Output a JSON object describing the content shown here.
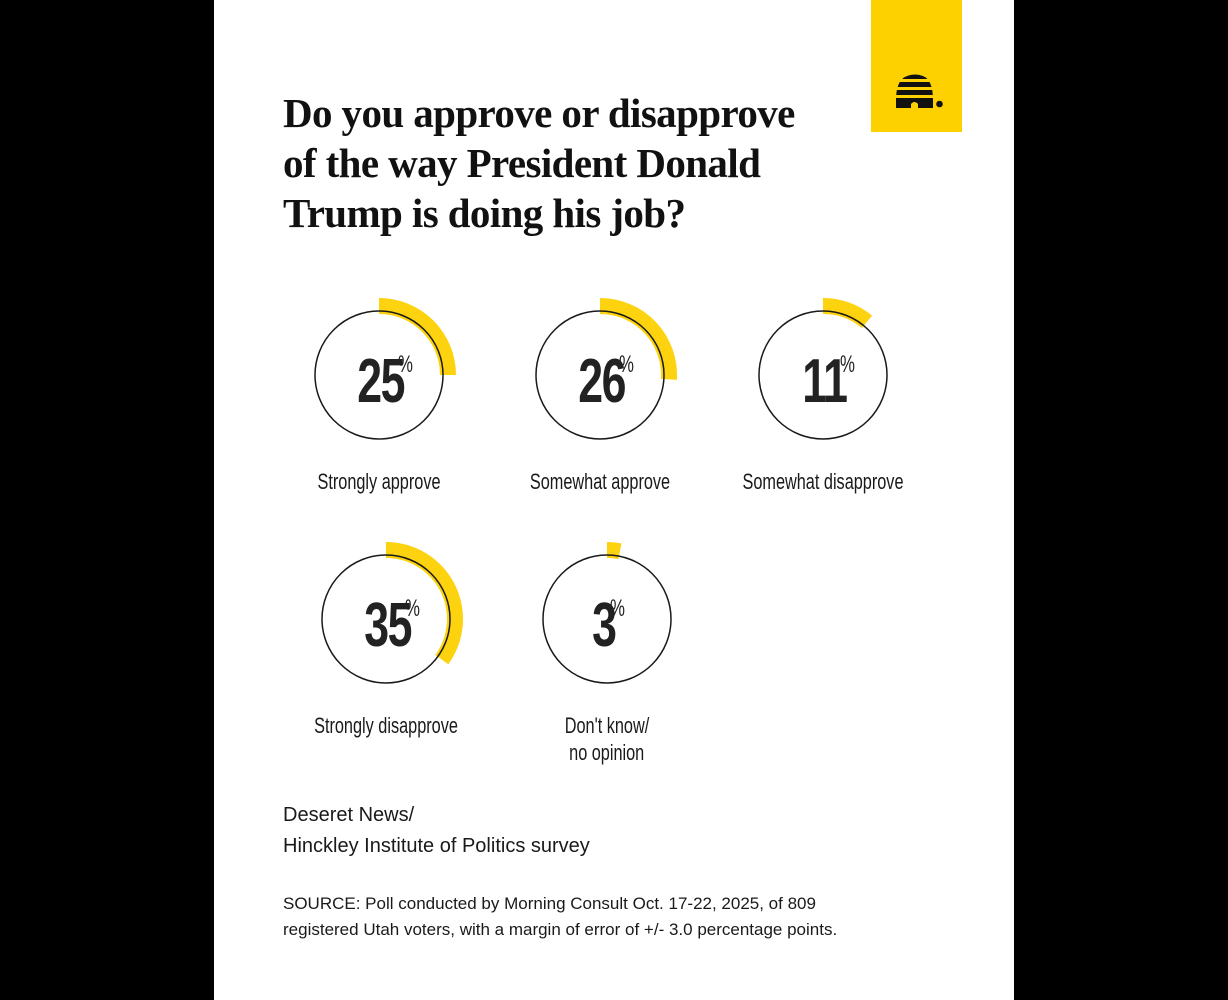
{
  "title_lines": [
    "Do you approve or disapprove",
    "of the way President Donald",
    "Trump is doing his job?"
  ],
  "logo": {
    "icon": "beehive-icon",
    "background": "#FDD000"
  },
  "colors": {
    "accent": "#FDD20E",
    "ring": "#1a1a1a",
    "text": "#1a1a1a",
    "page": "#ffffff",
    "frame": "#000000"
  },
  "items": [
    {
      "value": "25",
      "pct": "%",
      "label_lines": [
        "Strongly approve"
      ]
    },
    {
      "value": "26",
      "pct": "%",
      "label_lines": [
        "Somewhat approve"
      ]
    },
    {
      "value": "11",
      "pct": "%",
      "label_lines": [
        "Somewhat disapprove"
      ]
    },
    {
      "value": "35",
      "pct": "%",
      "label_lines": [
        "Strongly disapprove"
      ]
    },
    {
      "value": "3",
      "pct": "%",
      "label_lines": [
        "Don't know/",
        "no opinion"
      ]
    }
  ],
  "credit_lines": [
    "Deseret News/",
    "Hinckley Institute of Politics survey"
  ],
  "source_lines": [
    "SOURCE: Poll conducted by Morning Consult Oct. 17-22, 2025, of 809",
    "registered Utah voters, with a margin of error of +/- 3.0 percentage points."
  ],
  "chart_data": {
    "type": "pie",
    "title": "Do you approve or disapprove of the way President Donald Trump is doing his job?",
    "categories": [
      "Strongly approve",
      "Somewhat approve",
      "Somewhat disapprove",
      "Strongly disapprove",
      "Don't know/no opinion"
    ],
    "values": [
      25,
      26,
      11,
      35,
      3
    ],
    "unit": "%",
    "style": "radial progress rings, one per category",
    "source": "Deseret News/Hinckley Institute of Politics survey; Poll conducted by Morning Consult Oct. 17-22, 2025, of 809 registered Utah voters, with a margin of error of +/- 3.0 percentage points."
  }
}
